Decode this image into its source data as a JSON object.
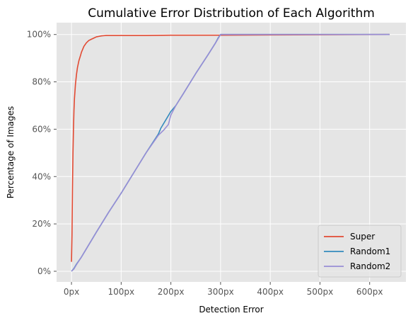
{
  "chart_data": {
    "type": "line",
    "title": "Cumulative Error Distribution of Each Algorithm",
    "xlabel": "Detection Error",
    "ylabel": "Percentage of Images",
    "xlim": [
      -30,
      673
    ],
    "ylim": [
      -4.5,
      105
    ],
    "xticks": [
      0,
      100,
      200,
      300,
      400,
      500,
      600
    ],
    "xtick_labels": [
      "0px",
      "100px",
      "200px",
      "300px",
      "400px",
      "500px",
      "600px"
    ],
    "yticks": [
      0,
      20,
      40,
      60,
      80,
      100
    ],
    "ytick_labels": [
      "0%",
      "20%",
      "40%",
      "60%",
      "80%",
      "100%"
    ],
    "grid": true,
    "legend_position": "bottom-right",
    "series": [
      {
        "name": "Super",
        "color": "#E24A33",
        "x": [
          0,
          1,
          2,
          3,
          4,
          5,
          6,
          8,
          10,
          12,
          15,
          18,
          20,
          25,
          30,
          35,
          40,
          45,
          50,
          55,
          60,
          65,
          70,
          80,
          100,
          150,
          200,
          250,
          300,
          400,
          500,
          640
        ],
        "y": [
          4,
          15,
          35,
          50,
          60,
          68,
          73,
          79,
          83,
          86,
          89,
          91,
          92.5,
          95,
          96.5,
          97.5,
          98,
          98.5,
          99,
          99.2,
          99.4,
          99.5,
          99.6,
          99.6,
          99.6,
          99.6,
          99.7,
          99.7,
          99.7,
          99.8,
          99.9,
          100
        ]
      },
      {
        "name": "Random1",
        "color": "#348ABD",
        "x": [
          0,
          5,
          10,
          20,
          30,
          50,
          75,
          100,
          125,
          150,
          175,
          180,
          190,
          200,
          210,
          225,
          250,
          275,
          290,
          295,
          300,
          350,
          400,
          500,
          640
        ],
        "y": [
          0,
          1.2,
          3,
          6,
          9.5,
          16.5,
          25,
          33,
          41.5,
          50,
          58,
          60.5,
          64,
          67.5,
          70,
          75,
          83.5,
          91.5,
          96.5,
          98.5,
          100,
          100,
          100,
          100,
          100
        ]
      },
      {
        "name": "Random2",
        "color": "#988ED5",
        "x": [
          0,
          5,
          10,
          20,
          30,
          50,
          75,
          100,
          125,
          150,
          175,
          185,
          195,
          200,
          210,
          225,
          250,
          275,
          290,
          300,
          350,
          400,
          500,
          640
        ],
        "y": [
          0,
          1,
          2.8,
          6,
          9.5,
          16.5,
          25,
          33,
          41.5,
          50,
          57.5,
          59.5,
          62,
          66,
          70,
          75,
          83.5,
          91.5,
          96.5,
          100,
          100,
          100,
          100,
          100
        ]
      }
    ]
  }
}
